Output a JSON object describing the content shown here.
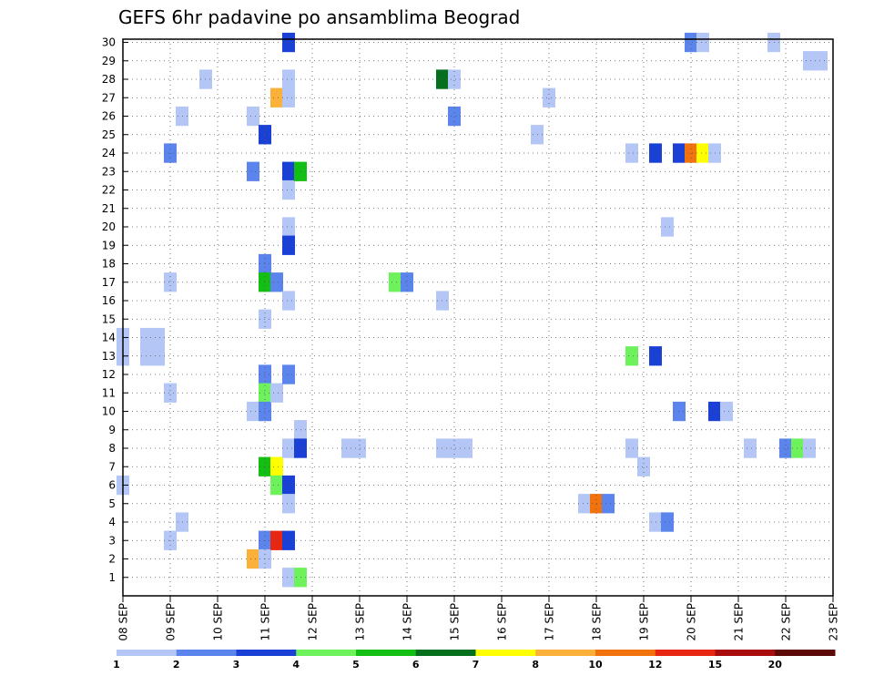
{
  "chart_data": {
    "type": "heatmap",
    "title": "GEFS 6hr padavine po ansamblima Beograd",
    "xlabel": "",
    "ylabel": "",
    "x_tick_labels": [
      "08 SEP",
      "09 SEP",
      "10 SEP",
      "11 SEP",
      "12 SEP",
      "13 SEP",
      "14 SEP",
      "15 SEP",
      "16 SEP",
      "17 SEP",
      "18 SEP",
      "19 SEP",
      "20 SEP",
      "21 SEP",
      "22 SEP",
      "23 SEP"
    ],
    "y_tick_labels": [
      "1",
      "2",
      "3",
      "4",
      "5",
      "6",
      "7",
      "8",
      "9",
      "10",
      "11",
      "12",
      "13",
      "14",
      "15",
      "16",
      "17",
      "18",
      "19",
      "20",
      "21",
      "22",
      "23",
      "24",
      "25",
      "26",
      "27",
      "28",
      "29",
      "30"
    ],
    "xlim_days": [
      0,
      15
    ],
    "ylim": [
      1,
      30
    ],
    "grid": true,
    "colorbar": {
      "levels": [
        "1",
        "2",
        "3",
        "4",
        "5",
        "6",
        "7",
        "8",
        "10",
        "12",
        "15",
        "20"
      ],
      "colors": [
        "#b4c6f5",
        "#5b84ec",
        "#1a40d6",
        "#6df25c",
        "#14bf14",
        "#046f1c",
        "#ffff00",
        "#fbb03a",
        "#f2730e",
        "#e82713",
        "#a80c0c",
        "#5c0808"
      ]
    },
    "cells": [
      {
        "day": 0.0,
        "member": 14,
        "level": 1
      },
      {
        "day": 0.0,
        "member": 13,
        "level": 1
      },
      {
        "day": 0.0,
        "member": 6,
        "level": 1
      },
      {
        "day": 0.5,
        "member": 14,
        "level": 1
      },
      {
        "day": 0.5,
        "member": 13,
        "level": 1
      },
      {
        "day": 0.75,
        "member": 14,
        "level": 1
      },
      {
        "day": 0.75,
        "member": 13,
        "level": 1
      },
      {
        "day": 1.0,
        "member": 24,
        "level": 2
      },
      {
        "day": 1.0,
        "member": 17,
        "level": 1
      },
      {
        "day": 1.0,
        "member": 11,
        "level": 1
      },
      {
        "day": 1.0,
        "member": 3,
        "level": 1
      },
      {
        "day": 1.25,
        "member": 26,
        "level": 1
      },
      {
        "day": 1.25,
        "member": 4,
        "level": 1
      },
      {
        "day": 1.75,
        "member": 28,
        "level": 1
      },
      {
        "day": 2.75,
        "member": 26,
        "level": 1
      },
      {
        "day": 2.75,
        "member": 23,
        "level": 2
      },
      {
        "day": 2.75,
        "member": 10,
        "level": 1
      },
      {
        "day": 2.75,
        "member": 2,
        "level": 8
      },
      {
        "day": 3.0,
        "member": 25,
        "level": 3
      },
      {
        "day": 3.0,
        "member": 18,
        "level": 2
      },
      {
        "day": 3.0,
        "member": 17,
        "level": 5
      },
      {
        "day": 3.0,
        "member": 15,
        "level": 1
      },
      {
        "day": 3.0,
        "member": 12,
        "level": 2
      },
      {
        "day": 3.0,
        "member": 11,
        "level": 4
      },
      {
        "day": 3.0,
        "member": 10,
        "level": 2
      },
      {
        "day": 3.0,
        "member": 7,
        "level": 5
      },
      {
        "day": 3.0,
        "member": 3,
        "level": 2
      },
      {
        "day": 3.0,
        "member": 2,
        "level": 1
      },
      {
        "day": 3.25,
        "member": 27,
        "level": 8
      },
      {
        "day": 3.25,
        "member": 17,
        "level": 2
      },
      {
        "day": 3.25,
        "member": 11,
        "level": 1
      },
      {
        "day": 3.25,
        "member": 7,
        "level": 7
      },
      {
        "day": 3.25,
        "member": 6,
        "level": 4
      },
      {
        "day": 3.25,
        "member": 3,
        "level": 12
      },
      {
        "day": 3.5,
        "member": 30,
        "level": 3
      },
      {
        "day": 3.5,
        "member": 28,
        "level": 1
      },
      {
        "day": 3.5,
        "member": 27,
        "level": 1
      },
      {
        "day": 3.5,
        "member": 23,
        "level": 3
      },
      {
        "day": 3.5,
        "member": 22,
        "level": 1
      },
      {
        "day": 3.5,
        "member": 20,
        "level": 1
      },
      {
        "day": 3.5,
        "member": 19,
        "level": 3
      },
      {
        "day": 3.5,
        "member": 16,
        "level": 1
      },
      {
        "day": 3.5,
        "member": 12,
        "level": 2
      },
      {
        "day": 3.5,
        "member": 8,
        "level": 1
      },
      {
        "day": 3.5,
        "member": 6,
        "level": 3
      },
      {
        "day": 3.5,
        "member": 5,
        "level": 1
      },
      {
        "day": 3.5,
        "member": 3,
        "level": 3
      },
      {
        "day": 3.5,
        "member": 1,
        "level": 1
      },
      {
        "day": 3.75,
        "member": 23,
        "level": 5
      },
      {
        "day": 3.75,
        "member": 9,
        "level": 1
      },
      {
        "day": 3.75,
        "member": 8,
        "level": 3
      },
      {
        "day": 3.75,
        "member": 1,
        "level": 4
      },
      {
        "day": 4.75,
        "member": 8,
        "level": 1
      },
      {
        "day": 5.0,
        "member": 8,
        "level": 1
      },
      {
        "day": 5.75,
        "member": 17,
        "level": 4
      },
      {
        "day": 6.0,
        "member": 17,
        "level": 2
      },
      {
        "day": 6.75,
        "member": 16,
        "level": 1
      },
      {
        "day": 6.75,
        "member": 8,
        "level": 1
      },
      {
        "day": 6.75,
        "member": 28,
        "level": 6
      },
      {
        "day": 7.0,
        "member": 28,
        "level": 1
      },
      {
        "day": 7.0,
        "member": 26,
        "level": 2
      },
      {
        "day": 7.0,
        "member": 8,
        "level": 1
      },
      {
        "day": 7.25,
        "member": 8,
        "level": 1
      },
      {
        "day": 8.75,
        "member": 25,
        "level": 1
      },
      {
        "day": 9.0,
        "member": 27,
        "level": 1
      },
      {
        "day": 9.75,
        "member": 5,
        "level": 1
      },
      {
        "day": 10.0,
        "member": 5,
        "level": 10
      },
      {
        "day": 10.25,
        "member": 5,
        "level": 2
      },
      {
        "day": 10.75,
        "member": 24,
        "level": 1
      },
      {
        "day": 10.75,
        "member": 13,
        "level": 4
      },
      {
        "day": 10.75,
        "member": 8,
        "level": 1
      },
      {
        "day": 11.0,
        "member": 7,
        "level": 1
      },
      {
        "day": 11.25,
        "member": 24,
        "level": 3
      },
      {
        "day": 11.25,
        "member": 13,
        "level": 3
      },
      {
        "day": 11.25,
        "member": 4,
        "level": 1
      },
      {
        "day": 11.5,
        "member": 20,
        "level": 1
      },
      {
        "day": 11.5,
        "member": 4,
        "level": 2
      },
      {
        "day": 11.75,
        "member": 24,
        "level": 3
      },
      {
        "day": 11.75,
        "member": 10,
        "level": 2
      },
      {
        "day": 12.0,
        "member": 30,
        "level": 2
      },
      {
        "day": 12.0,
        "member": 24,
        "level": 10
      },
      {
        "day": 12.25,
        "member": 30,
        "level": 1
      },
      {
        "day": 12.25,
        "member": 24,
        "level": 7
      },
      {
        "day": 12.5,
        "member": 24,
        "level": 1
      },
      {
        "day": 12.5,
        "member": 10,
        "level": 3
      },
      {
        "day": 12.75,
        "member": 10,
        "level": 1
      },
      {
        "day": 13.25,
        "member": 8,
        "level": 1
      },
      {
        "day": 13.75,
        "member": 30,
        "level": 1
      },
      {
        "day": 14.0,
        "member": 8,
        "level": 2
      },
      {
        "day": 14.25,
        "member": 8,
        "level": 4
      },
      {
        "day": 14.5,
        "member": 8,
        "level": 1
      },
      {
        "day": 14.5,
        "member": 29,
        "level": 1
      },
      {
        "day": 14.75,
        "member": 29,
        "level": 1
      }
    ]
  }
}
